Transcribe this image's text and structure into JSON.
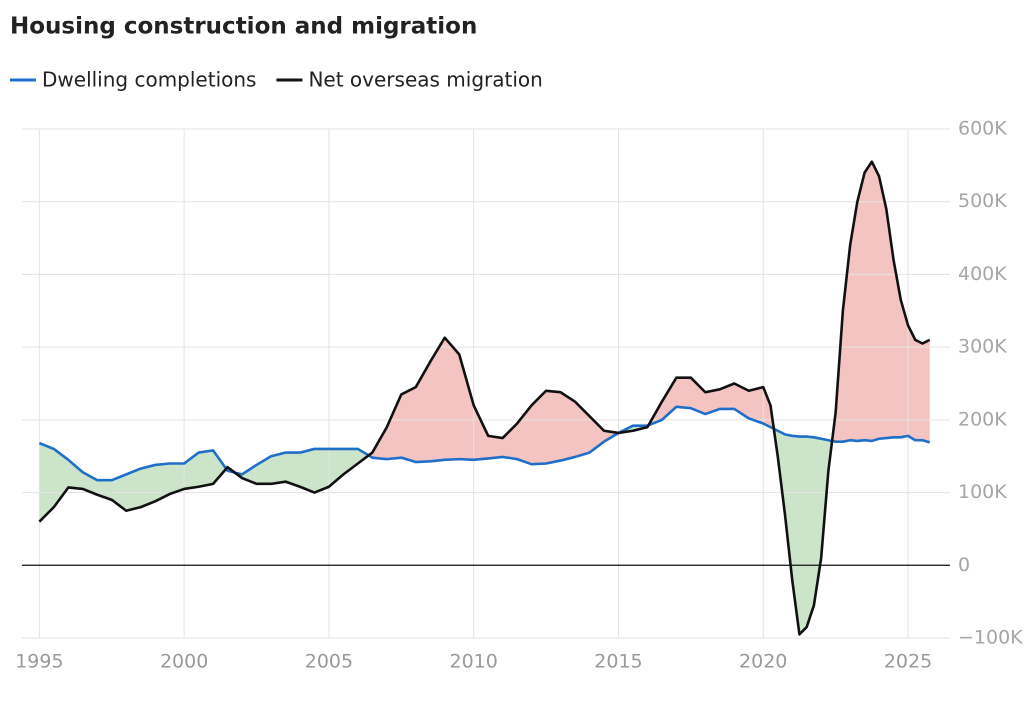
{
  "chart_data": {
    "type": "line",
    "title": "Housing construction and migration",
    "x": [
      1995,
      1995.5,
      1996,
      1996.5,
      1997,
      1997.5,
      1998,
      1998.5,
      1999,
      1999.5,
      2000,
      2000.5,
      2001,
      2001.5,
      2002,
      2002.5,
      2003,
      2003.5,
      2004,
      2004.5,
      2005,
      2005.5,
      2006,
      2006.5,
      2007,
      2007.5,
      2008,
      2008.5,
      2009,
      2009.5,
      2010,
      2010.5,
      2011,
      2011.5,
      2012,
      2012.5,
      2013,
      2013.5,
      2014,
      2014.5,
      2015,
      2015.5,
      2016,
      2016.5,
      2017,
      2017.5,
      2018,
      2018.5,
      2019,
      2019.5,
      2020,
      2020.25,
      2020.5,
      2020.75,
      2021,
      2021.25,
      2021.5,
      2021.75,
      2022,
      2022.25,
      2022.5,
      2022.75,
      2023,
      2023.25,
      2023.5,
      2023.75,
      2024,
      2024.25,
      2024.5,
      2024.75,
      2025,
      2025.25,
      2025.5,
      2025.75
    ],
    "series": [
      {
        "name": "Dwelling completions",
        "color": "#1f6fc9",
        "values": [
          168000,
          160000,
          145000,
          128000,
          117000,
          117000,
          125000,
          133000,
          138000,
          140000,
          140000,
          155000,
          158000,
          130000,
          125000,
          138000,
          150000,
          155000,
          155000,
          160000,
          160000,
          160000,
          160000,
          148000,
          146000,
          148000,
          142000,
          143000,
          145000,
          146000,
          145000,
          147000,
          149000,
          146000,
          139000,
          140000,
          144000,
          149000,
          155000,
          170000,
          182000,
          192000,
          192000,
          200000,
          218000,
          216000,
          208000,
          215000,
          215000,
          202000,
          195000,
          190000,
          185000,
          180000,
          178000,
          177000,
          177000,
          176000,
          174000,
          172000,
          170000,
          170000,
          172000,
          171000,
          172000,
          171000,
          174000,
          175000,
          176000,
          176000,
          178000,
          172000,
          172000,
          169000
        ]
      },
      {
        "name": "Net overseas migration",
        "color": "#111111",
        "values": [
          60000,
          80000,
          107000,
          105000,
          97000,
          90000,
          75000,
          80000,
          88000,
          98000,
          105000,
          108000,
          112000,
          135000,
          120000,
          112000,
          112000,
          115000,
          108000,
          100000,
          108000,
          125000,
          140000,
          155000,
          190000,
          235000,
          245000,
          280000,
          313000,
          290000,
          220000,
          178000,
          175000,
          195000,
          220000,
          240000,
          238000,
          225000,
          205000,
          185000,
          182000,
          185000,
          190000,
          225000,
          258000,
          258000,
          238000,
          242000,
          250000,
          240000,
          245000,
          220000,
          150000,
          70000,
          -20000,
          -95000,
          -85000,
          -55000,
          10000,
          130000,
          210000,
          350000,
          440000,
          500000,
          540000,
          555000,
          535000,
          490000,
          420000,
          365000,
          330000,
          310000,
          305000,
          310000
        ]
      }
    ],
    "fill_colors": {
      "migration_above": "#f4c4c3",
      "dwelling_above": "#cbe4ca"
    },
    "xlim": [
      1994.4,
      2026.45
    ],
    "xticks": [
      1995,
      2000,
      2005,
      2010,
      2015,
      2020,
      2025
    ],
    "ylim": [
      -100000,
      600000
    ],
    "yticks": [
      {
        "value": -100000,
        "label": "−100K"
      },
      0,
      {
        "value": 100000,
        "label": "100K"
      },
      {
        "value": 200000,
        "label": "200K"
      },
      {
        "value": 300000,
        "label": "300K"
      },
      {
        "value": 400000,
        "label": "400K"
      },
      {
        "value": 500000,
        "label": "500K"
      },
      {
        "value": 600000,
        "label": "600K"
      }
    ],
    "grid": true
  }
}
